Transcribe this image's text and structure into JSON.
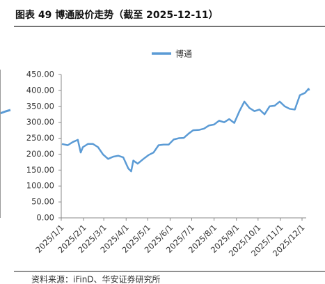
{
  "chart_data": {
    "type": "line",
    "title": "图表 49  博通股价走势（截至 2025-12-11）",
    "source": "资料来源：iFinD、华安证券研究所",
    "x": [
      "2025/1/2",
      "2025/1/10",
      "2025/1/17",
      "2025/1/24",
      "2025/1/28",
      "2025/1/31",
      "2025/2/7",
      "2025/2/14",
      "2025/2/21",
      "2025/2/28",
      "2025/3/7",
      "2025/3/14",
      "2025/3/21",
      "2025/3/28",
      "2025/4/4",
      "2025/4/8",
      "2025/4/11",
      "2025/4/17",
      "2025/4/25",
      "2025/5/2",
      "2025/5/9",
      "2025/5/16",
      "2025/5/23",
      "2025/5/30",
      "2025/6/6",
      "2025/6/13",
      "2025/6/20",
      "2025/6/27",
      "2025/7/3",
      "2025/7/11",
      "2025/7/18",
      "2025/7/25",
      "2025/8/1",
      "2025/8/8",
      "2025/8/15",
      "2025/8/22",
      "2025/8/29",
      "2025/9/5",
      "2025/9/12",
      "2025/9/19",
      "2025/9/26",
      "2025/10/3",
      "2025/10/10",
      "2025/10/17",
      "2025/10/24",
      "2025/10/31",
      "2025/11/7",
      "2025/11/14",
      "2025/11/21",
      "2025/11/28",
      "2025/12/5",
      "2025/12/10",
      "2025/12/11"
    ],
    "series": [
      {
        "name": "博通",
        "color": "#5b9bd5",
        "values": [
          232,
          228,
          238,
          245,
          205,
          222,
          232,
          232,
          222,
          199,
          185,
          192,
          195,
          190,
          155,
          146,
          180,
          170,
          185,
          197,
          205,
          228,
          230,
          230,
          246,
          250,
          251,
          265,
          275,
          276,
          280,
          290,
          293,
          305,
          300,
          310,
          298,
          334,
          365,
          345,
          335,
          340,
          325,
          350,
          352,
          365,
          350,
          342,
          340,
          385,
          392,
          405,
          400
        ]
      }
    ],
    "ylim": [
      0,
      450
    ],
    "yticks": [
      {
        "value": 0,
        "label": "0.00"
      },
      {
        "value": 50,
        "label": "50.00"
      },
      {
        "value": 100,
        "label": "100.00"
      },
      {
        "value": 150,
        "label": "150.00"
      },
      {
        "value": 200,
        "label": "200.00"
      },
      {
        "value": 250,
        "label": "250.00"
      },
      {
        "value": 300,
        "label": "300.00"
      },
      {
        "value": 350,
        "label": "350.00"
      },
      {
        "value": 400,
        "label": "400.00"
      },
      {
        "value": 450,
        "label": "450.00"
      }
    ],
    "xticks": [
      "2025/1/1",
      "2025/2/1",
      "2025/3/1",
      "2025/4/1",
      "2025/5/1",
      "2025/6/1",
      "2025/7/1",
      "2025/8/1",
      "2025/9/1",
      "2025/10/1",
      "2025/11/1",
      "2025/12/1"
    ],
    "legend": "top"
  }
}
